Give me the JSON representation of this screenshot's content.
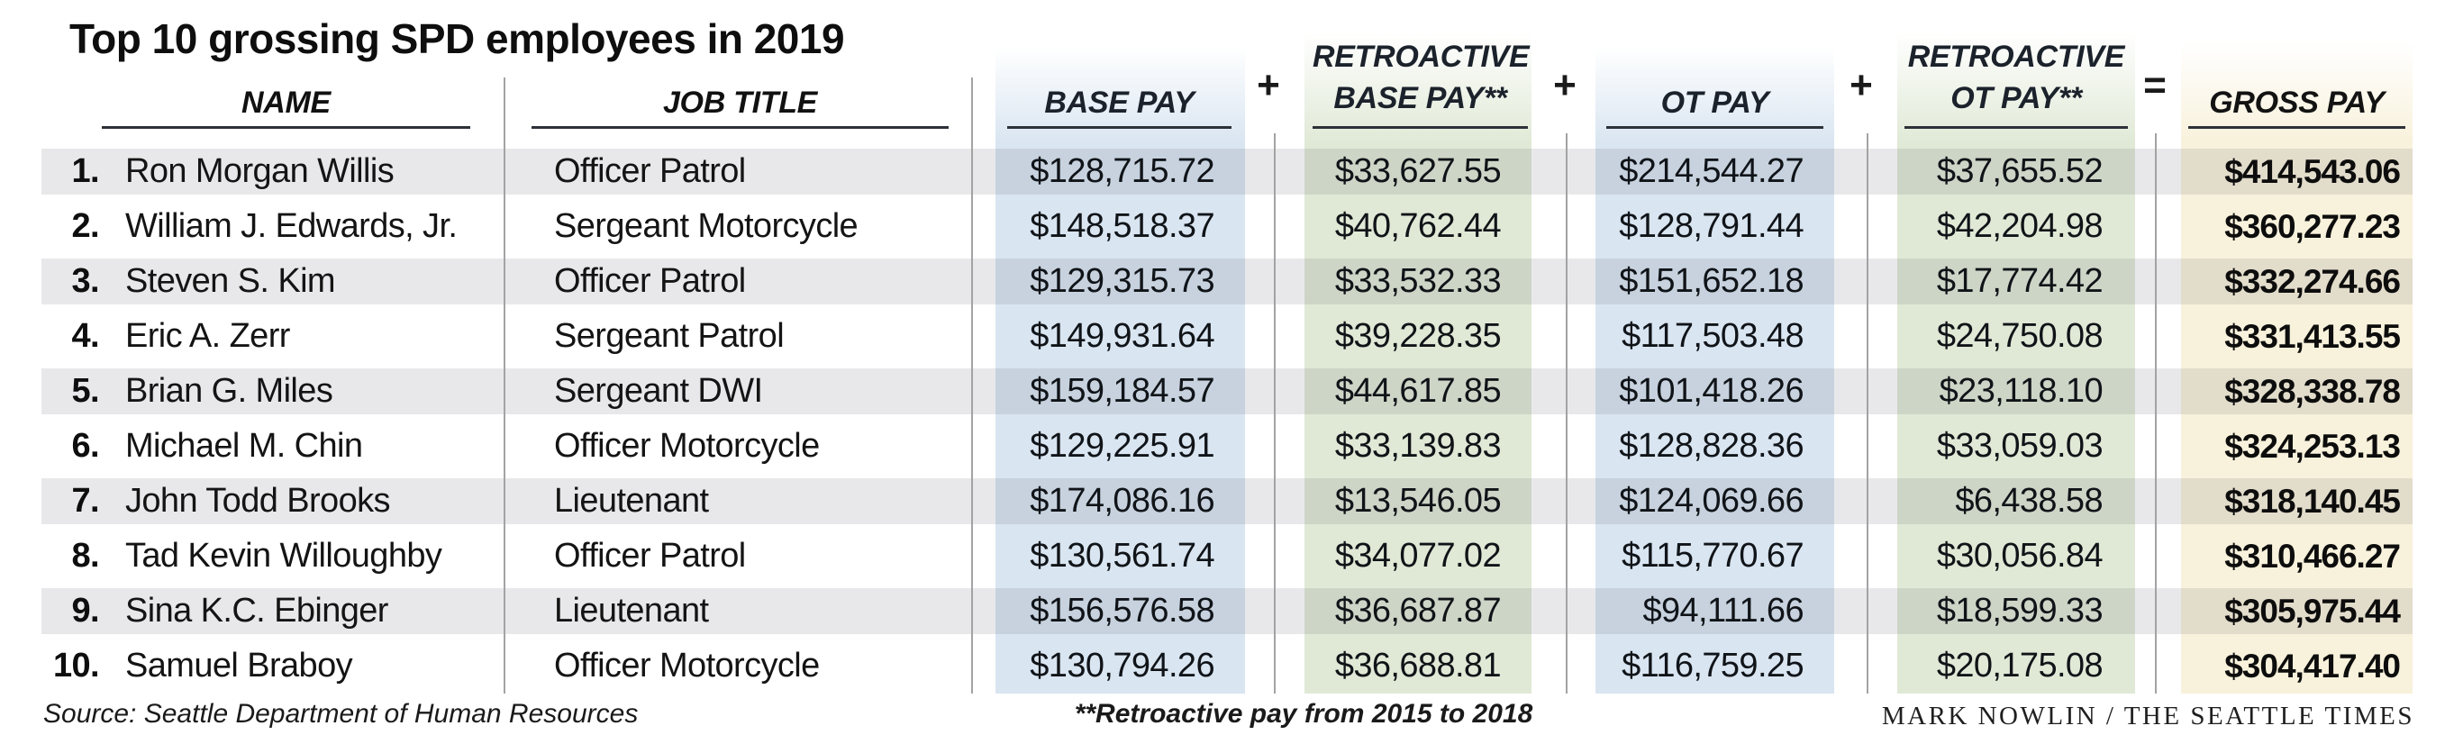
{
  "chart_data": {
    "type": "table",
    "title": "Top 10 grossing SPD employees in 2019",
    "columns": {
      "name": "NAME",
      "job_title": "JOB TITLE",
      "base_pay": "BASE PAY",
      "retro_base_line1": "RETROACTIVE",
      "retro_base_line2": "BASE PAY**",
      "ot_pay": "OT PAY",
      "retro_ot_line1": "RETROACTIVE",
      "retro_ot_line2": "OT PAY**",
      "gross_pay": "GROSS PAY"
    },
    "operators": {
      "plus1": "+",
      "plus2": "+",
      "plus3": "+",
      "equals": "="
    },
    "rows": [
      {
        "rank": "1.",
        "name": "Ron Morgan Willis",
        "job_title": "Officer Patrol",
        "base_pay": "$128,715.72",
        "retro_base_pay": "$33,627.55",
        "ot_pay": "$214,544.27",
        "retro_ot_pay": "$37,655.52",
        "gross_pay": "$414,543.06"
      },
      {
        "rank": "2.",
        "name": "William J. Edwards, Jr.",
        "job_title": "Sergeant Motorcycle",
        "base_pay": "$148,518.37",
        "retro_base_pay": "$40,762.44",
        "ot_pay": "$128,791.44",
        "retro_ot_pay": "$42,204.98",
        "gross_pay": "$360,277.23"
      },
      {
        "rank": "3.",
        "name": "Steven S. Kim",
        "job_title": "Officer Patrol",
        "base_pay": "$129,315.73",
        "retro_base_pay": "$33,532.33",
        "ot_pay": "$151,652.18",
        "retro_ot_pay": "$17,774.42",
        "gross_pay": "$332,274.66"
      },
      {
        "rank": "4.",
        "name": "Eric A. Zerr",
        "job_title": "Sergeant Patrol",
        "base_pay": "$149,931.64",
        "retro_base_pay": "$39,228.35",
        "ot_pay": "$117,503.48",
        "retro_ot_pay": "$24,750.08",
        "gross_pay": "$331,413.55"
      },
      {
        "rank": "5.",
        "name": "Brian G. Miles",
        "job_title": "Sergeant DWI",
        "base_pay": "$159,184.57",
        "retro_base_pay": "$44,617.85",
        "ot_pay": "$101,418.26",
        "retro_ot_pay": "$23,118.10",
        "gross_pay": "$328,338.78"
      },
      {
        "rank": "6.",
        "name": "Michael M. Chin",
        "job_title": "Officer Motorcycle",
        "base_pay": "$129,225.91",
        "retro_base_pay": "$33,139.83",
        "ot_pay": "$128,828.36",
        "retro_ot_pay": "$33,059.03",
        "gross_pay": "$324,253.13"
      },
      {
        "rank": "7.",
        "name": "John Todd Brooks",
        "job_title": "Lieutenant",
        "base_pay": "$174,086.16",
        "retro_base_pay": "$13,546.05",
        "ot_pay": "$124,069.66",
        "retro_ot_pay": "$6,438.58",
        "gross_pay": "$318,140.45"
      },
      {
        "rank": "8.",
        "name": "Tad Kevin Willoughby",
        "job_title": "Officer Patrol",
        "base_pay": "$130,561.74",
        "retro_base_pay": "$34,077.02",
        "ot_pay": "$115,770.67",
        "retro_ot_pay": "$30,056.84",
        "gross_pay": "$310,466.27"
      },
      {
        "rank": "9.",
        "name": "Sina K.C. Ebinger",
        "job_title": "Lieutenant",
        "base_pay": "$156,576.58",
        "retro_base_pay": "$36,687.87",
        "ot_pay": "$94,111.66",
        "retro_ot_pay": "$18,599.33",
        "gross_pay": "$305,975.44"
      },
      {
        "rank": "10.",
        "name": "Samuel Braboy",
        "job_title": "Officer Motorcycle",
        "base_pay": "$130,794.26",
        "retro_base_pay": "$36,688.81",
        "ot_pay": "$116,759.25",
        "retro_ot_pay": "$20,175.08",
        "gross_pay": "$304,417.40"
      }
    ],
    "layout": {
      "striped_rows": [
        1,
        3,
        5,
        7,
        9
      ],
      "legend_position": "none",
      "grid": "column-separators"
    },
    "colors": {
      "base_pay_column": "#d9e5f1",
      "retroactive_column": "#e0e9d6",
      "gross_pay_column": "#f8f1db",
      "row_stripe_overlay": "rgba(98,104,114,0.15)",
      "separator_line": "#a3a3a3",
      "header_underline": "#2d3138"
    },
    "footer": {
      "source": "Source: Seattle Department of Human Resources",
      "footnote": "**Retroactive pay from 2015 to 2018",
      "credit": "MARK NOWLIN / THE SEATTLE TIMES"
    }
  }
}
